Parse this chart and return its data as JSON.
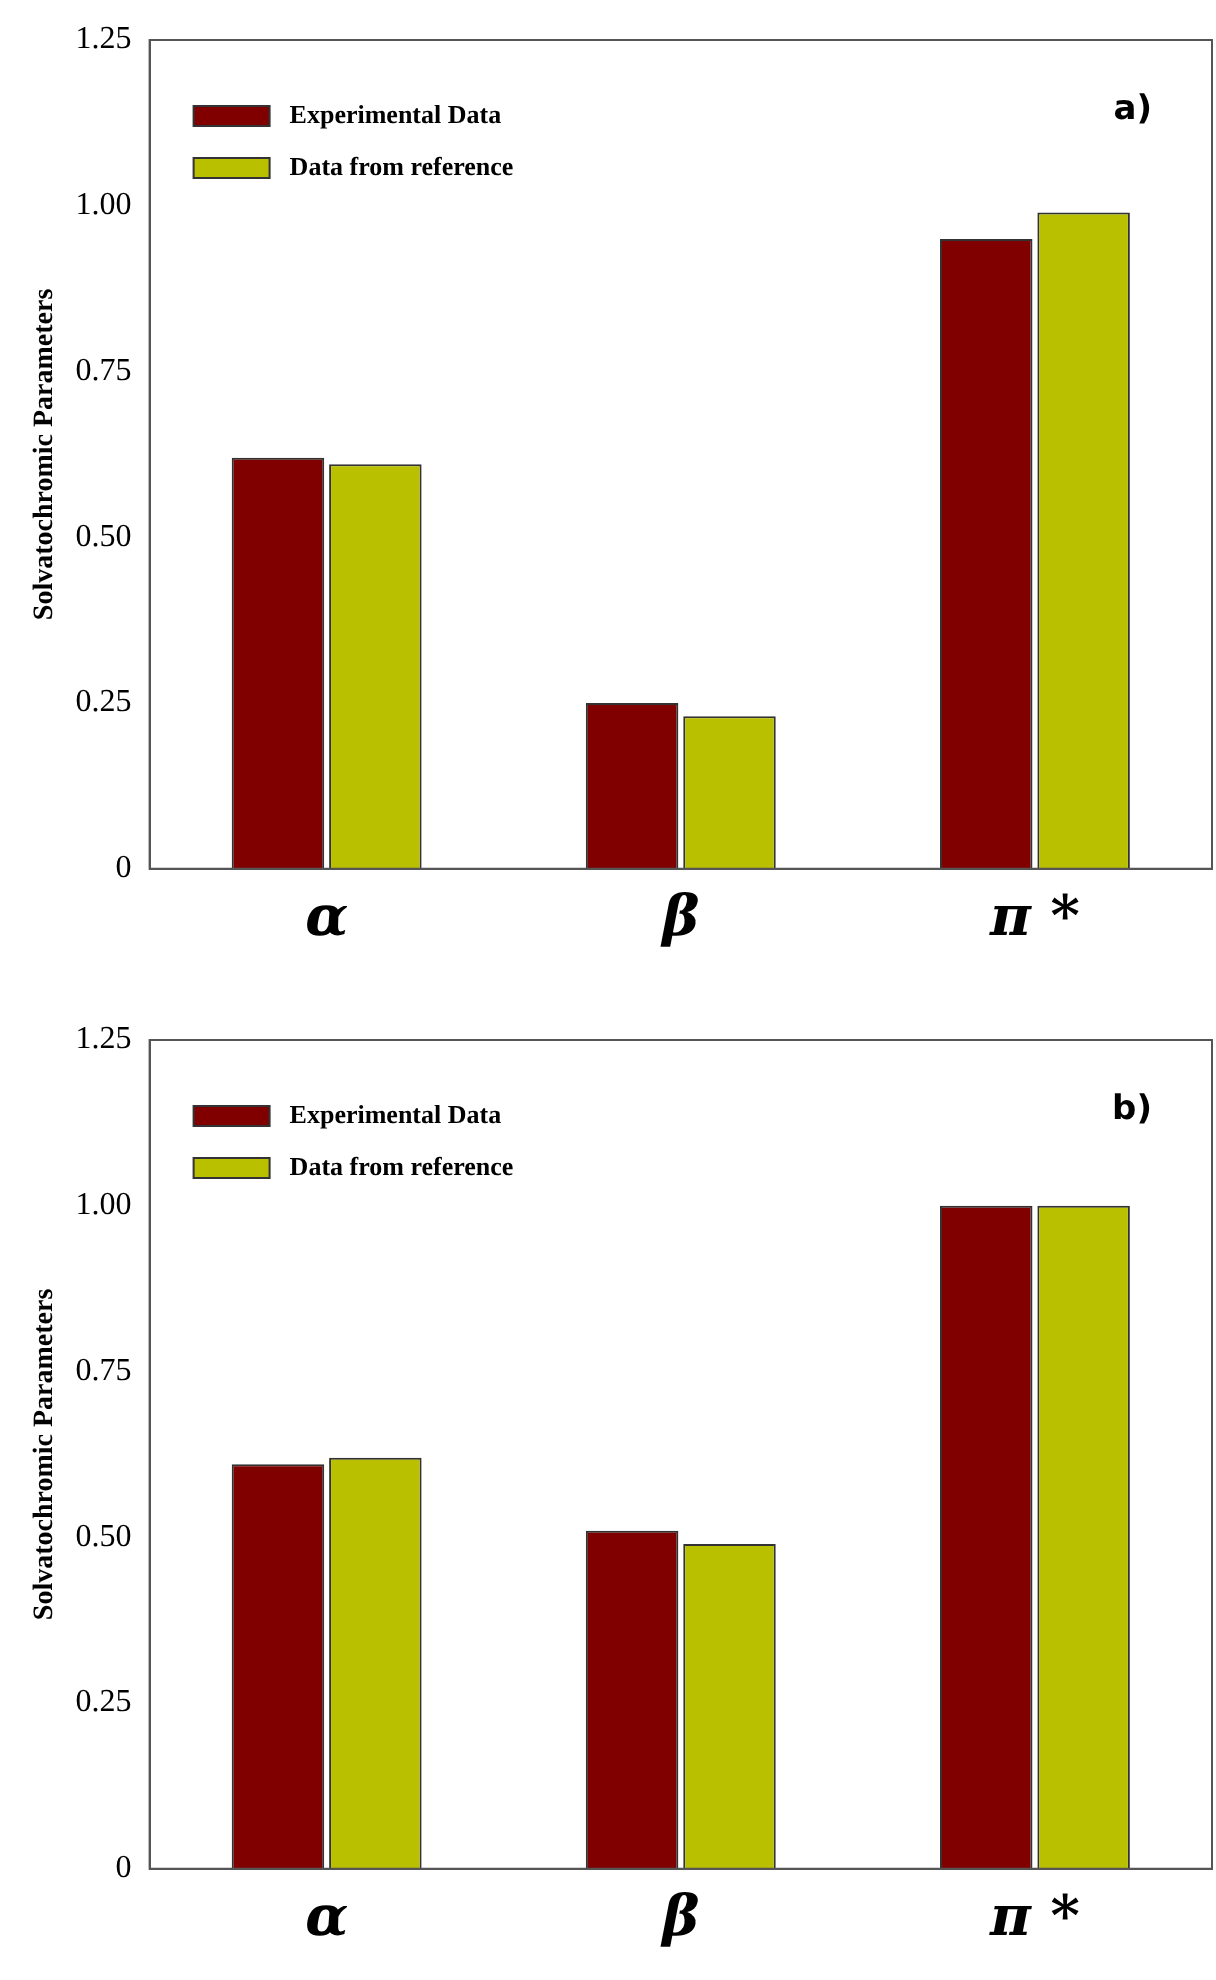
{
  "chart_data": [
    {
      "type": "bar",
      "ylabel": "Solvatochromic Parameters",
      "categories": [
        "α",
        "β",
        "π *"
      ],
      "series": [
        {
          "name": "Experimental Data",
          "color": "#800000",
          "values": [
            0.62,
            0.25,
            0.95
          ]
        },
        {
          "name": "Data from reference",
          "color": "#b8c000",
          "values": [
            0.61,
            0.23,
            0.99
          ]
        }
      ],
      "ylim": [
        0,
        1.25
      ],
      "yticks": [
        0,
        {
          "value": 0.25,
          "label": "0.25"
        },
        {
          "value": 0.5,
          "label": "0.50"
        },
        {
          "value": 0.75,
          "label": "0.75"
        },
        {
          "value": 1,
          "label": "1.00"
        },
        {
          "value": 1.25,
          "label": "1.25"
        }
      ],
      "annotations": [
        "a)"
      ],
      "legend": "top left",
      "grid": false
    },
    {
      "type": "bar",
      "ylabel": "Solvatochromic Parameters",
      "categories": [
        "α",
        "β",
        "π *"
      ],
      "series": [
        {
          "name": "Experimental Data",
          "color": "#800000",
          "values": [
            0.61,
            0.51,
            1.0
          ]
        },
        {
          "name": "Data from reference",
          "color": "#b8c000",
          "values": [
            0.62,
            0.49,
            1.0
          ]
        }
      ],
      "ylim": [
        0,
        1.25
      ],
      "yticks": [
        0,
        {
          "value": 0.25,
          "label": "0.25"
        },
        {
          "value": 0.5,
          "label": "0.50"
        },
        {
          "value": 0.75,
          "label": "0.75"
        },
        {
          "value": 1,
          "label": "1.00"
        },
        {
          "value": 1.25,
          "label": "1.25"
        }
      ],
      "annotations": [
        "b)"
      ],
      "legend": "top left",
      "grid": false
    }
  ]
}
